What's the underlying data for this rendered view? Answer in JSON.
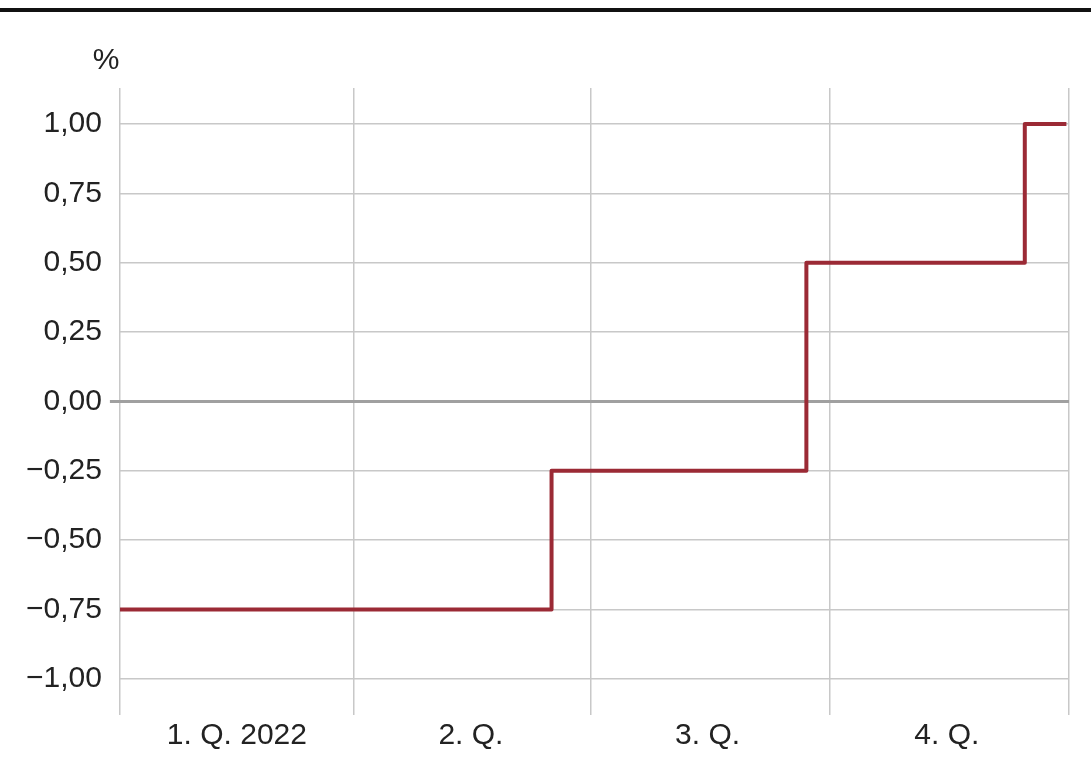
{
  "chart_data": {
    "type": "step",
    "ylabel": "%",
    "x": [
      "2022-01-01",
      "2022-06-16",
      "2022-09-22",
      "2022-12-15",
      "2022-12-31"
    ],
    "series": [
      {
        "color": "#9b2a35",
        "values": [
          -0.75,
          -0.25,
          0.5,
          1.0,
          1.0
        ]
      }
    ],
    "xlim": [
      "2022-01-01",
      "2023-01-01"
    ],
    "xticks": [
      {
        "value": "2022-01-01",
        "label": null
      },
      {
        "value": "2022-02-15",
        "label": "1. Q. 2022"
      },
      {
        "value": "2022-04-01",
        "label": null
      },
      {
        "value": "2022-05-16",
        "label": "2. Q."
      },
      {
        "value": "2022-07-01",
        "label": null
      },
      {
        "value": "2022-08-15",
        "label": "3. Q."
      },
      {
        "value": "2022-10-01",
        "label": null
      },
      {
        "value": "2022-11-15",
        "label": "4. Q."
      },
      {
        "value": "2023-01-01",
        "label": null
      }
    ],
    "ylim": [
      -1.13,
      1.13
    ],
    "yticks": [
      {
        "value": -1,
        "label": "−1,00"
      },
      {
        "value": -0.75,
        "label": "−0,75"
      },
      {
        "value": -0.5,
        "label": "−0,50"
      },
      {
        "value": -0.25,
        "label": "−0,25"
      },
      {
        "value": 0,
        "label": "0,00"
      },
      {
        "value": 0.25,
        "label": "0,25"
      },
      {
        "value": 0.5,
        "label": "0,50"
      },
      {
        "value": 0.75,
        "label": "0,75"
      },
      {
        "value": 1,
        "label": "1,00"
      }
    ],
    "ref_lines": [
      {
        "axis": "y",
        "value": 0,
        "color": "#a0a0a0"
      }
    ],
    "grid": true,
    "legend": false
  }
}
